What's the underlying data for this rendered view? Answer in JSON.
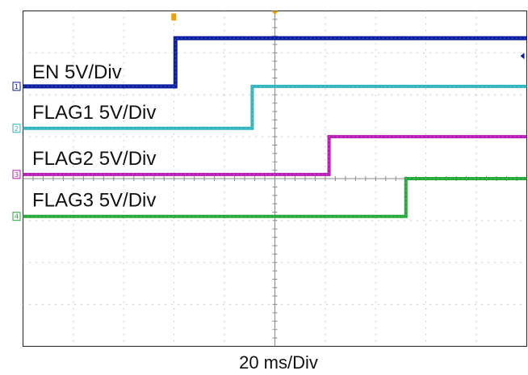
{
  "chart_data": {
    "type": "line",
    "title": "",
    "xlabel": "20 ms/Div",
    "ylabel": "",
    "grid": true,
    "x_divisions": 10,
    "y_divisions": 8,
    "time_per_div_ms": 20,
    "xlim_ms": [
      0,
      200
    ],
    "series": [
      {
        "name": "EN 5V/Div",
        "channel_marker": "1",
        "color": "#0b1fa0",
        "low_div": 6.2,
        "high_div": 7.35,
        "step_ms": 60.5
      },
      {
        "name": "FLAG1 5V/Div",
        "channel_marker": "2",
        "color": "#2fb3bf",
        "low_div": 5.2,
        "high_div": 6.2,
        "step_ms": 91.0
      },
      {
        "name": "FLAG2 5V/Div",
        "channel_marker": "3",
        "color": "#b81ab8",
        "low_div": 4.1,
        "high_div": 5.0,
        "step_ms": 121.5
      },
      {
        "name": "FLAG3 5V/Div",
        "channel_marker": "4",
        "color": "#23a83a",
        "low_div": 3.1,
        "high_div": 4.0,
        "step_ms": 152.0
      }
    ]
  },
  "trigger_marker_color": "#f0a000",
  "center_marker_color": "#f0a000"
}
